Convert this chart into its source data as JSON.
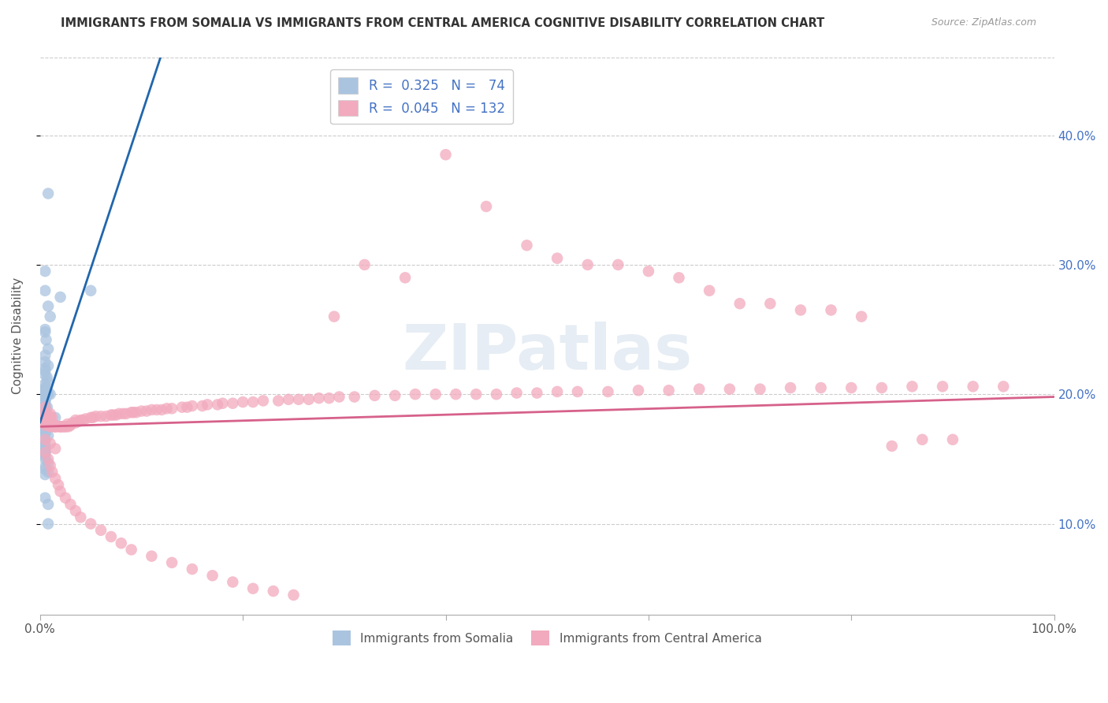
{
  "title": "IMMIGRANTS FROM SOMALIA VS IMMIGRANTS FROM CENTRAL AMERICA COGNITIVE DISABILITY CORRELATION CHART",
  "source": "Source: ZipAtlas.com",
  "ylabel": "Cognitive Disability",
  "xlim": [
    0,
    1.0
  ],
  "ylim": [
    0.03,
    0.46
  ],
  "yticks": [
    0.1,
    0.2,
    0.3,
    0.4
  ],
  "ytick_labels": [
    "10.0%",
    "20.0%",
    "30.0%",
    "40.0%"
  ],
  "xticks": [
    0.0,
    0.2,
    0.4,
    0.6,
    0.8,
    1.0
  ],
  "xtick_labels": [
    "0.0%",
    "",
    "",
    "",
    "",
    "100.0%"
  ],
  "color_somalia": "#aac4e0",
  "color_central": "#f2aabe",
  "line_color_somalia": "#2166ac",
  "line_color_central": "#d6618a",
  "dashed_color": "#b0cce0",
  "watermark": "ZIPatlas",
  "somalia_x": [
    0.008,
    0.005,
    0.005,
    0.008,
    0.01,
    0.005,
    0.005,
    0.006,
    0.008,
    0.005,
    0.005,
    0.008,
    0.005,
    0.005,
    0.005,
    0.007,
    0.007,
    0.005,
    0.005,
    0.005,
    0.005,
    0.007,
    0.005,
    0.005,
    0.007,
    0.01,
    0.008,
    0.005,
    0.005,
    0.005,
    0.005,
    0.005,
    0.005,
    0.005,
    0.005,
    0.007,
    0.005,
    0.005,
    0.005,
    0.005,
    0.005,
    0.005,
    0.015,
    0.005,
    0.005,
    0.005,
    0.005,
    0.005,
    0.005,
    0.005,
    0.008,
    0.005,
    0.005,
    0.005,
    0.005,
    0.005,
    0.005,
    0.005,
    0.005,
    0.008,
    0.005,
    0.005,
    0.005,
    0.05,
    0.005,
    0.005,
    0.008,
    0.008,
    0.005,
    0.008,
    0.005,
    0.005,
    0.005,
    0.02
  ],
  "somalia_y": [
    0.355,
    0.295,
    0.28,
    0.268,
    0.26,
    0.25,
    0.248,
    0.242,
    0.235,
    0.23,
    0.225,
    0.222,
    0.22,
    0.218,
    0.215,
    0.213,
    0.21,
    0.208,
    0.205,
    0.204,
    0.203,
    0.203,
    0.202,
    0.202,
    0.2,
    0.2,
    0.2,
    0.2,
    0.198,
    0.196,
    0.195,
    0.195,
    0.192,
    0.19,
    0.19,
    0.19,
    0.188,
    0.186,
    0.186,
    0.185,
    0.185,
    0.184,
    0.182,
    0.18,
    0.18,
    0.178,
    0.177,
    0.175,
    0.172,
    0.17,
    0.168,
    0.165,
    0.162,
    0.16,
    0.158,
    0.156,
    0.154,
    0.152,
    0.15,
    0.147,
    0.144,
    0.142,
    0.138,
    0.28,
    0.175,
    0.12,
    0.115,
    0.1,
    0.155,
    0.14,
    0.175,
    0.17,
    0.172,
    0.275
  ],
  "central_x": [
    0.005,
    0.01,
    0.005,
    0.005,
    0.008,
    0.01,
    0.01,
    0.012,
    0.005,
    0.01,
    0.005,
    0.008,
    0.01,
    0.005,
    0.01,
    0.01,
    0.012,
    0.015,
    0.005,
    0.01,
    0.012,
    0.01,
    0.015,
    0.02,
    0.02,
    0.018,
    0.015,
    0.015,
    0.022,
    0.022,
    0.025,
    0.028,
    0.025,
    0.03,
    0.027,
    0.032,
    0.035,
    0.038,
    0.035,
    0.04,
    0.042,
    0.045,
    0.05,
    0.052,
    0.055,
    0.06,
    0.065,
    0.07,
    0.072,
    0.075,
    0.078,
    0.082,
    0.085,
    0.09,
    0.092,
    0.095,
    0.1,
    0.105,
    0.11,
    0.115,
    0.12,
    0.125,
    0.13,
    0.14,
    0.145,
    0.15,
    0.16,
    0.165,
    0.175,
    0.18,
    0.19,
    0.2,
    0.21,
    0.22,
    0.235,
    0.245,
    0.255,
    0.265,
    0.275,
    0.285,
    0.295,
    0.31,
    0.33,
    0.35,
    0.37,
    0.39,
    0.41,
    0.43,
    0.45,
    0.47,
    0.49,
    0.51,
    0.53,
    0.56,
    0.59,
    0.62,
    0.65,
    0.68,
    0.71,
    0.74,
    0.77,
    0.8,
    0.83,
    0.86,
    0.89,
    0.92,
    0.95,
    0.005,
    0.01,
    0.015,
    0.005,
    0.008,
    0.01,
    0.012,
    0.015,
    0.018,
    0.02,
    0.025,
    0.03,
    0.035,
    0.04,
    0.05,
    0.06,
    0.07,
    0.08,
    0.09,
    0.11,
    0.13,
    0.15,
    0.17,
    0.19,
    0.21,
    0.23,
    0.25
  ],
  "central_y": [
    0.19,
    0.185,
    0.185,
    0.183,
    0.183,
    0.183,
    0.182,
    0.182,
    0.182,
    0.18,
    0.18,
    0.179,
    0.178,
    0.178,
    0.177,
    0.177,
    0.177,
    0.176,
    0.176,
    0.176,
    0.175,
    0.175,
    0.175,
    0.175,
    0.175,
    0.175,
    0.175,
    0.175,
    0.175,
    0.175,
    0.175,
    0.175,
    0.175,
    0.176,
    0.177,
    0.178,
    0.178,
    0.179,
    0.18,
    0.18,
    0.18,
    0.181,
    0.182,
    0.182,
    0.183,
    0.183,
    0.183,
    0.184,
    0.184,
    0.184,
    0.185,
    0.185,
    0.185,
    0.186,
    0.186,
    0.186,
    0.187,
    0.187,
    0.188,
    0.188,
    0.188,
    0.189,
    0.189,
    0.19,
    0.19,
    0.191,
    0.191,
    0.192,
    0.192,
    0.193,
    0.193,
    0.194,
    0.194,
    0.195,
    0.195,
    0.196,
    0.196,
    0.196,
    0.197,
    0.197,
    0.198,
    0.198,
    0.199,
    0.199,
    0.2,
    0.2,
    0.2,
    0.2,
    0.2,
    0.201,
    0.201,
    0.202,
    0.202,
    0.202,
    0.203,
    0.203,
    0.204,
    0.204,
    0.204,
    0.205,
    0.205,
    0.205,
    0.205,
    0.206,
    0.206,
    0.206,
    0.206,
    0.165,
    0.162,
    0.158,
    0.155,
    0.15,
    0.145,
    0.14,
    0.135,
    0.13,
    0.125,
    0.12,
    0.115,
    0.11,
    0.105,
    0.1,
    0.095,
    0.09,
    0.085,
    0.08,
    0.075,
    0.07,
    0.065,
    0.06,
    0.055,
    0.05,
    0.048,
    0.045
  ],
  "central_upper_x": [
    0.29,
    0.32,
    0.36,
    0.4,
    0.44,
    0.48,
    0.51,
    0.54,
    0.57,
    0.6,
    0.63,
    0.66,
    0.69,
    0.72,
    0.75,
    0.78,
    0.81,
    0.84,
    0.87,
    0.9
  ],
  "central_upper_y": [
    0.26,
    0.3,
    0.29,
    0.385,
    0.345,
    0.315,
    0.305,
    0.3,
    0.3,
    0.295,
    0.29,
    0.28,
    0.27,
    0.27,
    0.265,
    0.265,
    0.26,
    0.16,
    0.165,
    0.165
  ]
}
